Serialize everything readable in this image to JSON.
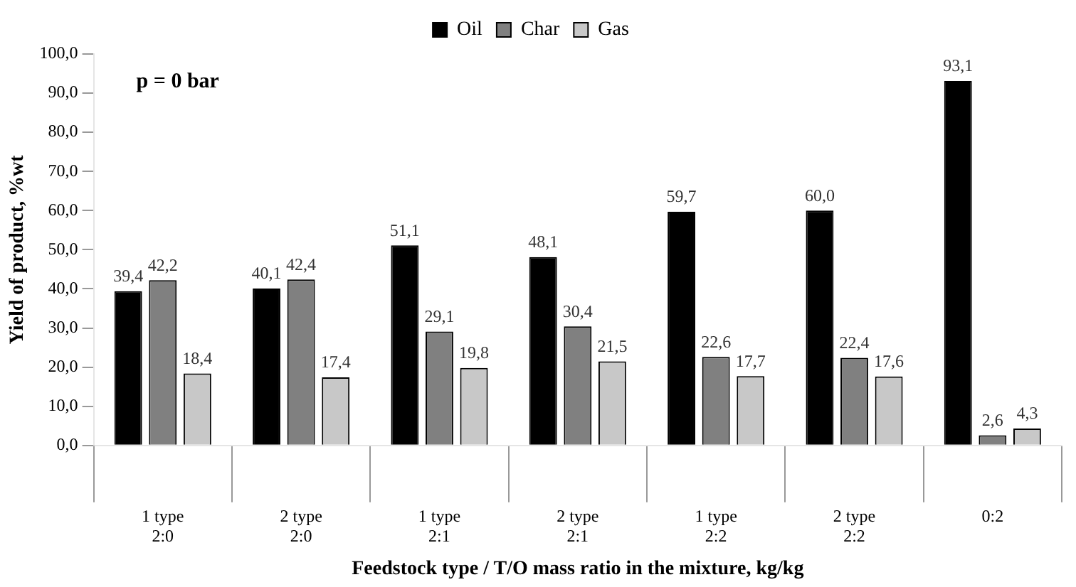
{
  "chart_data": {
    "type": "bar",
    "xlabel": "Feedstock type / T/O mass ratio in the mixture, kg/kg",
    "ylabel": "Yield of product, %wt",
    "categories": [
      "1 type\n2:0",
      "2 type\n2:0",
      "1 type\n2:1",
      "2 type\n2:1",
      "1 type\n2:2",
      "2 type\n2:2",
      "0:2"
    ],
    "series": [
      {
        "name": "Oil",
        "color": "#000000",
        "values": [
          39.4,
          40.1,
          51.1,
          48.1,
          59.7,
          60.0,
          93.1
        ],
        "value_labels": [
          "39,4",
          "40,1",
          "51,1",
          "48,1",
          "59,7",
          "60,0",
          "93,1"
        ]
      },
      {
        "name": "Char",
        "color": "#808080",
        "values": [
          42.2,
          42.4,
          29.1,
          30.4,
          22.6,
          22.4,
          2.6
        ],
        "value_labels": [
          "42,2",
          "42,4",
          "29,1",
          "30,4",
          "22,6",
          "22,4",
          "2,6"
        ]
      },
      {
        "name": "Gas",
        "color": "#c8c8c8",
        "values": [
          18.4,
          17.4,
          19.8,
          21.5,
          17.7,
          17.6,
          4.3
        ],
        "value_labels": [
          "18,4",
          "17,4",
          "19,8",
          "21,5",
          "17,7",
          "17,6",
          "4,3"
        ]
      }
    ],
    "ylim": [
      0,
      100
    ],
    "yticks": [
      {
        "value": 0,
        "label": "0,0"
      },
      {
        "value": 10,
        "label": "10,0"
      },
      {
        "value": 20,
        "label": "20,0"
      },
      {
        "value": 30,
        "label": "30,0"
      },
      {
        "value": 40,
        "label": "40,0"
      },
      {
        "value": 50,
        "label": "50,0"
      },
      {
        "value": 60,
        "label": "60,0"
      },
      {
        "value": 70,
        "label": "70,0"
      },
      {
        "value": 80,
        "label": "80,0"
      },
      {
        "value": 90,
        "label": "90,0"
      },
      {
        "value": 100,
        "label": "100,0"
      }
    ],
    "annotations": [
      "p = 0 bar"
    ],
    "legend": "top",
    "grid": false
  }
}
